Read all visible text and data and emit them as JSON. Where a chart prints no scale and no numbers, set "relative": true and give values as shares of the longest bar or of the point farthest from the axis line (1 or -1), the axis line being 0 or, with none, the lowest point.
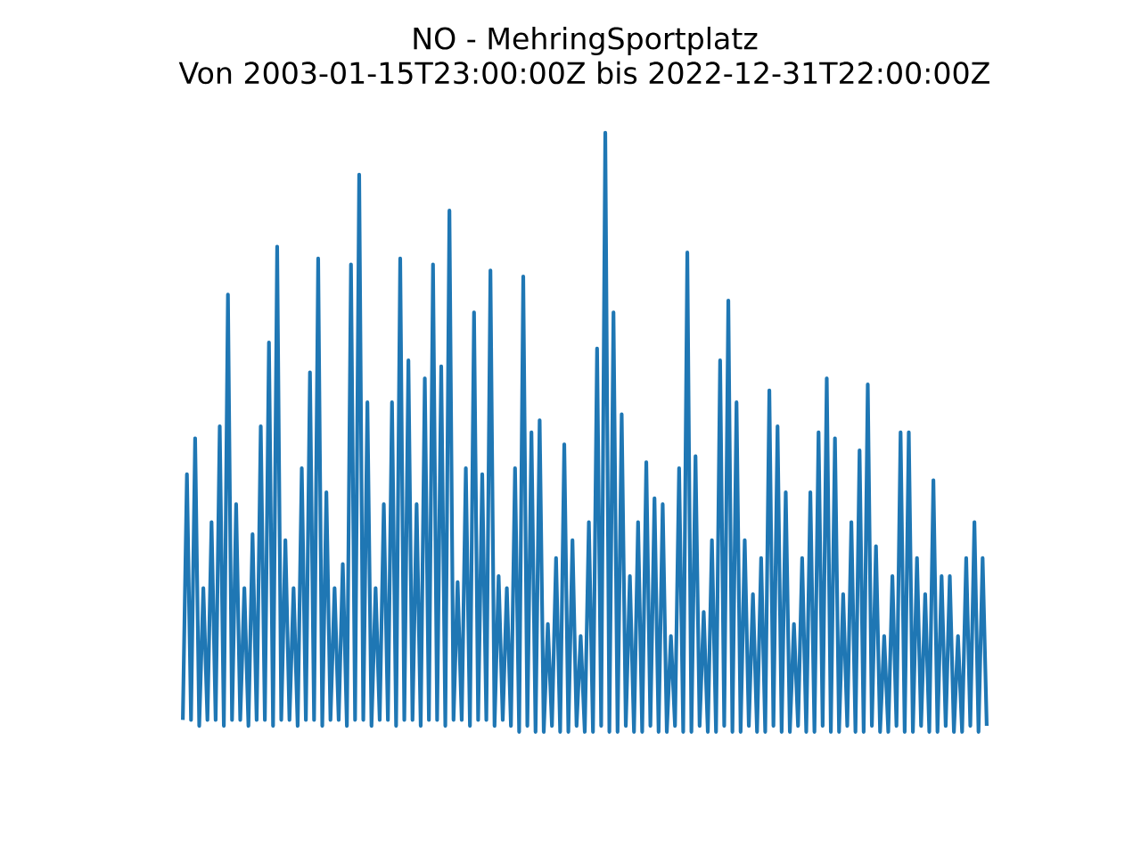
{
  "chart_data": {
    "type": "line",
    "relative": true,
    "title": "NO - MehringSportplatz",
    "subtitle": "Von 2003-01-15T23:00:00Z bis 2022-12-31T22:00:00Z",
    "color": "#1f77b4",
    "categories": [
      null,
      null,
      null,
      null,
      null,
      null,
      null,
      null,
      null,
      null,
      null,
      null,
      null,
      null,
      null,
      null,
      null,
      null,
      null,
      null,
      null,
      null,
      null,
      null,
      null,
      null,
      null,
      null,
      null,
      null,
      null,
      null,
      null,
      null,
      null,
      null,
      null,
      null,
      null,
      null,
      null,
      null,
      null,
      null,
      null,
      null,
      null,
      null,
      null,
      null,
      null,
      null,
      null,
      null,
      null,
      null,
      null,
      null,
      null,
      null,
      null,
      null,
      null,
      null,
      null,
      null,
      null,
      null,
      null,
      null,
      null,
      null,
      null,
      null,
      null,
      null,
      null,
      null,
      null,
      null,
      null,
      null,
      null,
      null,
      null,
      null,
      null,
      null,
      null,
      null,
      null,
      null,
      null,
      null,
      null,
      null,
      null,
      null,
      null,
      null,
      null,
      null,
      null,
      null,
      null,
      null,
      null,
      null,
      null,
      null,
      null,
      null,
      null,
      null,
      null,
      null,
      null,
      null,
      null,
      null,
      null,
      null,
      null,
      null,
      null,
      null,
      null,
      null,
      null,
      null,
      null,
      null,
      null,
      null,
      null,
      null,
      null,
      null,
      null,
      null,
      null,
      null,
      null,
      null,
      null,
      null,
      null,
      null,
      null,
      null,
      null,
      null,
      null,
      null,
      null,
      null,
      null,
      null,
      null,
      null,
      null,
      null,
      null,
      null,
      null,
      null,
      null,
      null,
      null,
      null,
      null,
      null,
      null,
      null,
      null,
      null,
      null,
      null,
      null,
      null,
      null,
      null,
      null,
      null,
      null,
      null,
      null,
      null,
      null,
      null,
      null,
      null,
      null,
      null,
      null,
      null,
      null
    ],
    "values": [
      0.02,
      0.43,
      0.02,
      0.49,
      0.01,
      0.24,
      0.02,
      0.35,
      0.02,
      0.51,
      0.01,
      0.73,
      0.02,
      0.38,
      0.02,
      0.24,
      0.01,
      0.33,
      0.02,
      0.51,
      0.02,
      0.65,
      0.01,
      0.81,
      0.02,
      0.32,
      0.02,
      0.24,
      0.01,
      0.44,
      0.02,
      0.6,
      0.02,
      0.79,
      0.01,
      0.4,
      0.02,
      0.24,
      0.02,
      0.28,
      0.01,
      0.78,
      0.02,
      0.93,
      0.02,
      0.55,
      0.01,
      0.24,
      0.02,
      0.38,
      0.02,
      0.55,
      0.01,
      0.79,
      0.02,
      0.62,
      0.02,
      0.38,
      0.01,
      0.59,
      0.02,
      0.78,
      0.02,
      0.61,
      0.01,
      0.87,
      0.02,
      0.25,
      0.02,
      0.44,
      0.01,
      0.7,
      0.02,
      0.43,
      0.02,
      0.77,
      0.01,
      0.26,
      0.02,
      0.24,
      0.01,
      0.44,
      0,
      0.76,
      0.01,
      0.5,
      0,
      0.52,
      0,
      0.18,
      0.01,
      0.29,
      0,
      0.48,
      0,
      0.32,
      0.01,
      0.16,
      0,
      0.35,
      0,
      0.64,
      0.01,
      1.0,
      0,
      0.7,
      0,
      0.53,
      0.01,
      0.26,
      0,
      0.35,
      0,
      0.45,
      0.01,
      0.39,
      0,
      0.38,
      0,
      0.16,
      0.01,
      0.44,
      0,
      0.8,
      0,
      0.46,
      0.01,
      0.2,
      0,
      0.32,
      0,
      0.62,
      0.01,
      0.72,
      0,
      0.55,
      0,
      0.32,
      0.01,
      0.23,
      0,
      0.29,
      0,
      0.57,
      0.01,
      0.51,
      0,
      0.4,
      0,
      0.18,
      0.01,
      0.29,
      0,
      0.4,
      0,
      0.5,
      0.01,
      0.59,
      0,
      0.49,
      0,
      0.23,
      0.01,
      0.35,
      0,
      0.47,
      0,
      0.58,
      0.01,
      0.31,
      0,
      0.16,
      0,
      0.26,
      0.01,
      0.5,
      0,
      0.5,
      0,
      0.29,
      0.01,
      0.23,
      0,
      0.42,
      0,
      0.26,
      0.01,
      0.26,
      0,
      0.16,
      0,
      0.29,
      0.01,
      0.35,
      0,
      0.29,
      0.01
    ]
  }
}
